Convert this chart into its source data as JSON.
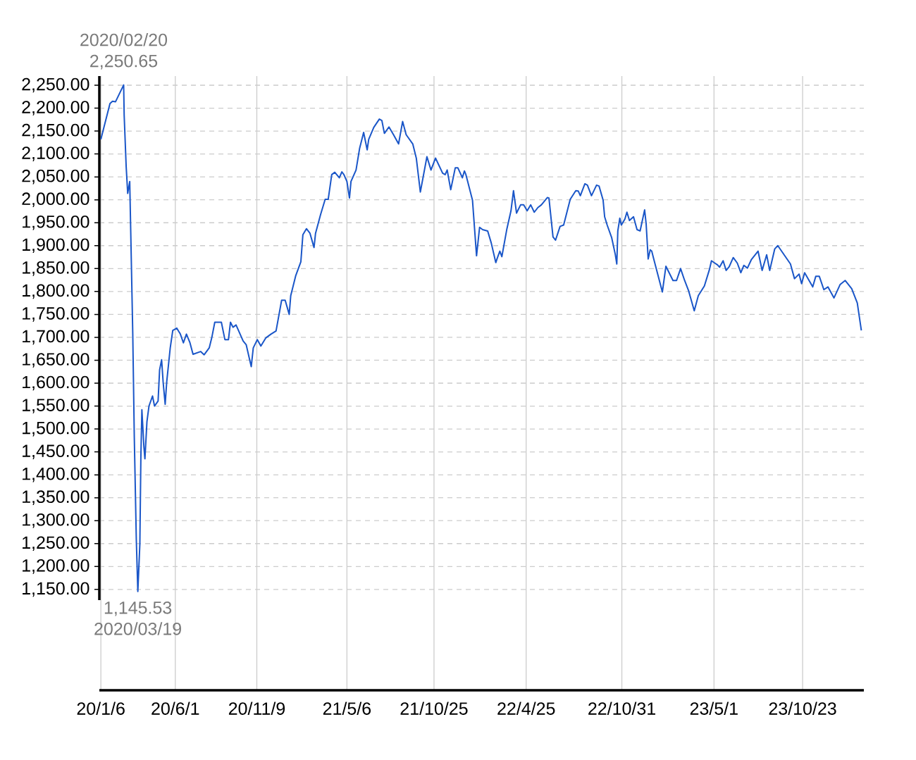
{
  "chart_data": {
    "type": "line",
    "color": "#1a56c8",
    "x": [
      "2020-01-06",
      "2020-01-24",
      "2020-01-29",
      "2020-02-04",
      "2020-02-20",
      "2020-02-21",
      "2020-02-25",
      "2020-02-28",
      "2020-03-03",
      "2020-03-05",
      "2020-03-09",
      "2020-03-12",
      "2020-03-16",
      "2020-03-19",
      "2020-03-23",
      "2020-03-25",
      "2020-03-27",
      "2020-03-31",
      "2020-04-02",
      "2020-04-06",
      "2020-04-10",
      "2020-04-17",
      "2020-04-21",
      "2020-04-28",
      "2020-05-01",
      "2020-05-05",
      "2020-05-08",
      "2020-05-12",
      "2020-05-15",
      "2020-05-22",
      "2020-05-27",
      "2020-06-04",
      "2020-06-11",
      "2020-06-17",
      "2020-06-23",
      "2020-06-30",
      "2020-07-06",
      "2020-07-21",
      "2020-07-28",
      "2020-08-07",
      "2020-08-12",
      "2020-08-18",
      "2020-08-31",
      "2020-09-07",
      "2020-09-14",
      "2020-09-18",
      "2020-09-23",
      "2020-09-29",
      "2020-10-13",
      "2020-10-19",
      "2020-10-29",
      "2020-11-02",
      "2020-11-10",
      "2020-11-17",
      "2020-11-27",
      "2020-12-07",
      "2020-12-17",
      "2020-12-28",
      "2021-01-04",
      "2021-01-12",
      "2021-01-15",
      "2021-01-25",
      "2021-02-04",
      "2021-02-08",
      "2021-02-15",
      "2021-02-22",
      "2021-03-02",
      "2021-03-05",
      "2021-03-15",
      "2021-03-24",
      "2021-03-30",
      "2021-04-06",
      "2021-04-12",
      "2021-04-21",
      "2021-04-26",
      "2021-04-30",
      "2021-05-06",
      "2021-05-11",
      "2021-05-14",
      "2021-05-24",
      "2021-05-31",
      "2021-06-08",
      "2021-06-15",
      "2021-06-18",
      "2021-06-28",
      "2021-07-09",
      "2021-07-14",
      "2021-07-19",
      "2021-07-28",
      "2021-08-06",
      "2021-08-16",
      "2021-08-24",
      "2021-08-31",
      "2021-09-13",
      "2021-09-20",
      "2021-09-28",
      "2021-10-11",
      "2021-10-19",
      "2021-10-28",
      "2021-11-11",
      "2021-11-16",
      "2021-11-20",
      "2021-11-27",
      "2021-12-06",
      "2021-12-11",
      "2021-12-20",
      "2021-12-24",
      "2021-12-27",
      "2022-01-09",
      "2022-01-17",
      "2022-01-23",
      "2022-01-29",
      "2022-02-08",
      "2022-02-15",
      "2022-02-24",
      "2022-02-27",
      "2022-03-04",
      "2022-03-08",
      "2022-03-18",
      "2022-03-26",
      "2022-03-31",
      "2022-04-06",
      "2022-04-14",
      "2022-04-20",
      "2022-04-27",
      "2022-05-04",
      "2022-05-11",
      "2022-05-18",
      "2022-05-25",
      "2022-06-06",
      "2022-06-09",
      "2022-06-17",
      "2022-06-22",
      "2022-07-01",
      "2022-07-08",
      "2022-07-21",
      "2022-08-01",
      "2022-08-06",
      "2022-08-10",
      "2022-08-19",
      "2022-08-24",
      "2022-09-01",
      "2022-09-11",
      "2022-09-16",
      "2022-09-24",
      "2022-09-27",
      "2022-10-02",
      "2022-10-11",
      "2022-10-18",
      "2022-10-21",
      "2022-10-23",
      "2022-10-27",
      "2022-10-30",
      "2022-11-06",
      "2022-11-10",
      "2022-11-15",
      "2022-11-23",
      "2022-11-30",
      "2022-12-06",
      "2022-12-15",
      "2022-12-18",
      "2022-12-22",
      "2022-12-26",
      "2022-12-29",
      "2023-01-02",
      "2023-01-19",
      "2023-01-26",
      "2023-02-09",
      "2023-02-16",
      "2023-02-24",
      "2023-03-04",
      "2023-03-12",
      "2023-03-23",
      "2023-03-31",
      "2023-04-12",
      "2023-04-22",
      "2023-04-26",
      "2023-05-08",
      "2023-05-12",
      "2023-05-19",
      "2023-05-25",
      "2023-05-31",
      "2023-06-08",
      "2023-06-16",
      "2023-06-23",
      "2023-06-29",
      "2023-07-06",
      "2023-07-14",
      "2023-07-27",
      "2023-08-04",
      "2023-08-13",
      "2023-08-19",
      "2023-08-29",
      "2023-09-04",
      "2023-09-29",
      "2023-10-07",
      "2023-10-16",
      "2023-10-21",
      "2023-10-27",
      "2023-11-12",
      "2023-11-18",
      "2023-11-25",
      "2023-12-04",
      "2023-12-12",
      "2023-12-24",
      "2024-01-05",
      "2024-01-15",
      "2024-01-28",
      "2024-02-08",
      "2024-02-16"
    ],
    "values": [
      2132,
      2210,
      2215,
      2214,
      2250.65,
      2185,
      2072,
      2014,
      2040,
      1930,
      1707,
      1483,
      1259,
      1145.53,
      1249,
      1438,
      1542,
      1461,
      1435,
      1516,
      1550,
      1572,
      1550,
      1561,
      1629,
      1651,
      1602,
      1554,
      1602,
      1677,
      1715,
      1720,
      1707,
      1688,
      1707,
      1688,
      1663,
      1669,
      1662,
      1677,
      1699,
      1733,
      1733,
      1695,
      1695,
      1733,
      1722,
      1727,
      1692,
      1684,
      1636,
      1677,
      1695,
      1681,
      1699,
      1707,
      1714,
      1781,
      1781,
      1750,
      1791,
      1835,
      1865,
      1924,
      1937,
      1927,
      1896,
      1927,
      1968,
      2001,
      2001,
      2055,
      2060,
      2048,
      2061,
      2055,
      2040,
      2004,
      2040,
      2065,
      2112,
      2147,
      2109,
      2132,
      2158,
      2176,
      2173,
      2145,
      2159,
      2142,
      2122,
      2171,
      2142,
      2122,
      2091,
      2017,
      2094,
      2065,
      2091,
      2058,
      2055,
      2065,
      2022,
      2070,
      2070,
      2048,
      2063,
      2055,
      1999,
      1878,
      1940,
      1935,
      1932,
      1906,
      1863,
      1873,
      1888,
      1876,
      1937,
      1976,
      2020,
      1971,
      1989,
      1989,
      1976,
      1989,
      1973,
      1983,
      1989,
      2005,
      2004,
      1919,
      1912,
      1942,
      1945,
      2001,
      2020,
      2019,
      2009,
      2035,
      2032,
      2009,
      2032,
      2030,
      1999,
      1963,
      1945,
      1917,
      1881,
      1860,
      1932,
      1960,
      1945,
      1958,
      1973,
      1955,
      1963,
      1935,
      1932,
      1978,
      1947,
      1871,
      1891,
      1888,
      1871,
      1799,
      1855,
      1824,
      1824,
      1850,
      1824,
      1801,
      1758,
      1791,
      1812,
      1848,
      1867,
      1858,
      1853,
      1867,
      1846,
      1854,
      1874,
      1862,
      1841,
      1857,
      1851,
      1870,
      1888,
      1846,
      1880,
      1846,
      1893,
      1900,
      1860,
      1828,
      1838,
      1817,
      1841,
      1810,
      1833,
      1833,
      1804,
      1810,
      1786,
      1815,
      1824,
      1806,
      1775,
      1715
    ],
    "xlim": [
      "2020-01-03",
      "2024-02-21"
    ],
    "xticks": [
      {
        "value": "2020-01-06",
        "label": "20/1/6"
      },
      {
        "value": "2020-06-01",
        "label": "20/6/1"
      },
      {
        "value": "2020-11-09",
        "label": "20/11/9"
      },
      {
        "value": "2021-05-06",
        "label": "21/5/6"
      },
      {
        "value": "2021-10-25",
        "label": "21/10/25"
      },
      {
        "value": "2022-04-25",
        "label": "22/4/25"
      },
      {
        "value": "2022-10-31",
        "label": "22/10/31"
      },
      {
        "value": "2023-05-01",
        "label": "23/5/1"
      },
      {
        "value": "2023-10-23",
        "label": "23/10/23"
      }
    ],
    "ylim": [
      930,
      2270
    ],
    "yticks": [
      {
        "value": 1150,
        "label": "1,150.00"
      },
      {
        "value": 1200,
        "label": "1,200.00"
      },
      {
        "value": 1250,
        "label": "1,250.00"
      },
      {
        "value": 1300,
        "label": "1,300.00"
      },
      {
        "value": 1350,
        "label": "1,350.00"
      },
      {
        "value": 1400,
        "label": "1,400.00"
      },
      {
        "value": 1450,
        "label": "1,450.00"
      },
      {
        "value": 1500,
        "label": "1,500.00"
      },
      {
        "value": 1550,
        "label": "1,550.00"
      },
      {
        "value": 1600,
        "label": "1,600.00"
      },
      {
        "value": 1650,
        "label": "1,650.00"
      },
      {
        "value": 1700,
        "label": "1,700.00"
      },
      {
        "value": 1750,
        "label": "1,750.00"
      },
      {
        "value": 1800,
        "label": "1,800.00"
      },
      {
        "value": 1850,
        "label": "1,850.00"
      },
      {
        "value": 1900,
        "label": "1,900.00"
      },
      {
        "value": 1950,
        "label": "1,950.00"
      },
      {
        "value": 2000,
        "label": "2,000.00"
      },
      {
        "value": 2050,
        "label": "2,050.00"
      },
      {
        "value": 2100,
        "label": "2,100.00"
      },
      {
        "value": 2150,
        "label": "2,150.00"
      },
      {
        "value": 2200,
        "label": "2,200.00"
      },
      {
        "value": 2250,
        "label": "2,250.00"
      }
    ],
    "grid": true,
    "annotations": [
      {
        "text": "2020/02/20 2,250.65",
        "x": "2020-02-20",
        "y": 2250.65
      },
      {
        "text": "1,145.53 2020/03/19",
        "x": "2020-03-19",
        "y": 1145.53
      }
    ]
  }
}
